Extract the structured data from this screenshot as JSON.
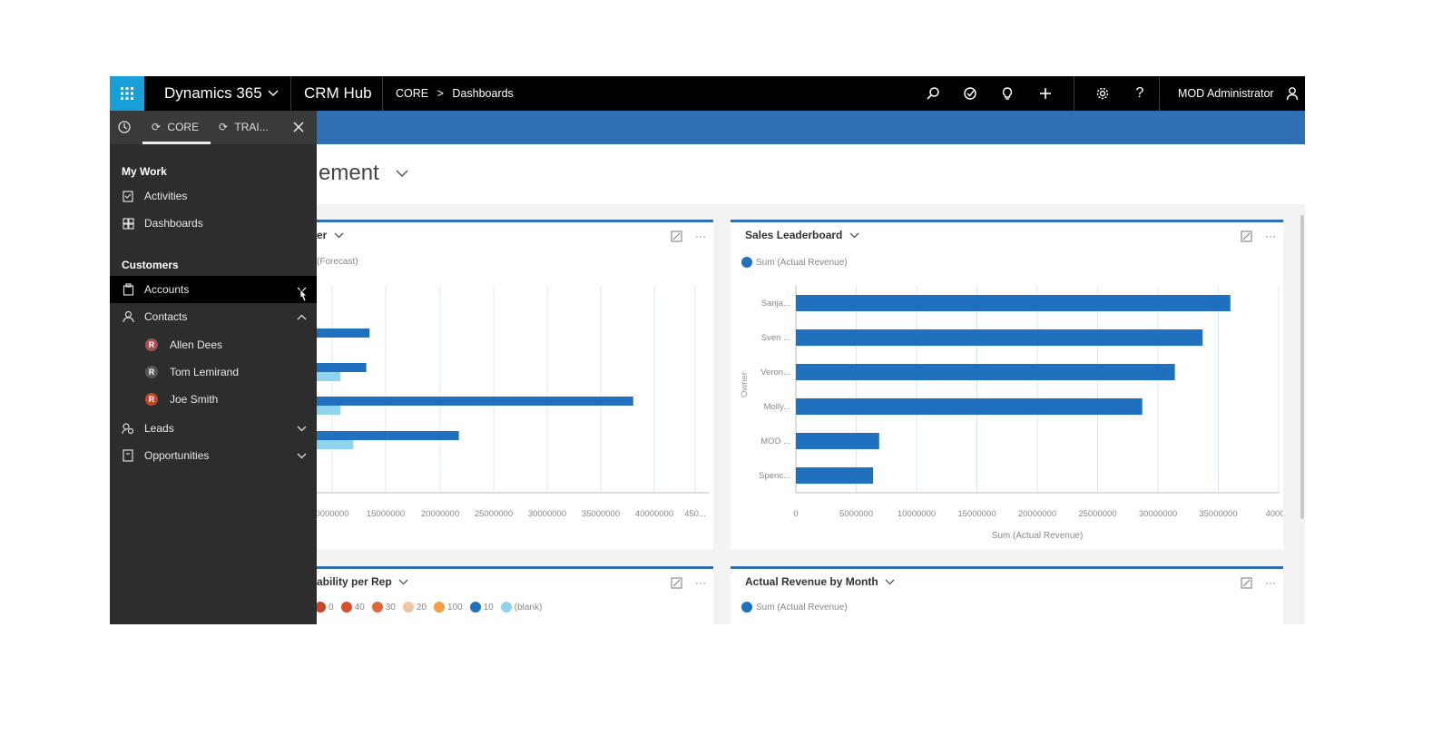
{
  "topbar": {
    "app_name": "Dynamics 365",
    "hub": "CRM Hub",
    "breadcrumb_area": "CORE",
    "breadcrumb_sep": ">",
    "breadcrumb_page": "Dashboards",
    "user": "MOD Administrator"
  },
  "sidebar": {
    "tabs": [
      {
        "label": "CORE"
      },
      {
        "label": "TRAI..."
      }
    ],
    "sections": [
      {
        "title": "My Work"
      },
      {
        "title": "Customers"
      }
    ],
    "items": {
      "activities": "Activities",
      "dashboards": "Dashboards",
      "accounts": "Accounts",
      "contacts": "Contacts",
      "leads": "Leads",
      "opportunities": "Opportunities"
    },
    "contacts": [
      {
        "name": "Allen Dees",
        "color": "#a05050"
      },
      {
        "name": "Tom Lemirand",
        "color": "#555555"
      },
      {
        "name": "Joe Smith",
        "color": "#c8452a"
      }
    ]
  },
  "dashboard": {
    "title_visible": "ement",
    "cards": {
      "left_top": {
        "title": "er",
        "legend": "(Forecast)"
      },
      "right_top": {
        "title": "Sales Leaderboard",
        "legend": "Sum (Actual Revenue)"
      },
      "left_bottom": {
        "title": "ability per Rep"
      },
      "right_bottom": {
        "title": "Actual Revenue by Month",
        "legend": "Sum (Actual Revenue)"
      }
    },
    "left_bottom_legend": [
      {
        "label": "0",
        "color": "#c8452a"
      },
      {
        "label": "40",
        "color": "#d9512c"
      },
      {
        "label": "30",
        "color": "#e0673a"
      },
      {
        "label": "20",
        "color": "#f2c4a4"
      },
      {
        "label": "100",
        "color": "#f0a040"
      },
      {
        "label": "10",
        "color": "#2070c0"
      },
      {
        "label": "(blank)",
        "color": "#8fd3ee"
      }
    ]
  },
  "colors": {
    "accent": "#2f6fb5",
    "bar_primary": "#2070c0",
    "bar_secondary": "#8fd3ee",
    "waffle": "#1aa0d8"
  },
  "chart_data": [
    {
      "type": "bar",
      "title": "Sales Leaderboard",
      "orientation": "horizontal",
      "categories": [
        "Sanja...",
        "Sven ...",
        "Veron...",
        "Molly...",
        "MOD ...",
        "Spenc..."
      ],
      "series": [
        {
          "name": "Sum (Actual Revenue)",
          "values": [
            36000000,
            33700000,
            31400000,
            28700000,
            6900000,
            6400000
          ]
        }
      ],
      "xlabel": "Sum (Actual Revenue)",
      "ylabel": "Owner",
      "xlim": [
        0,
        40000000
      ],
      "xticks": [
        "0",
        "5000000",
        "10000000",
        "15000000",
        "20000000",
        "25000000",
        "30000000",
        "35000000",
        "4000..."
      ],
      "grid": true
    },
    {
      "type": "bar",
      "orientation": "horizontal",
      "xticks": [
        "0000000",
        "15000000",
        "20000000",
        "25000000",
        "30000000",
        "35000000",
        "40000000",
        "450..."
      ],
      "series": [
        {
          "values": [
            13500000,
            13200000,
            38000000,
            21800000
          ]
        },
        {
          "values": [
            null,
            10800000,
            10800000,
            12000000
          ]
        }
      ]
    }
  ]
}
